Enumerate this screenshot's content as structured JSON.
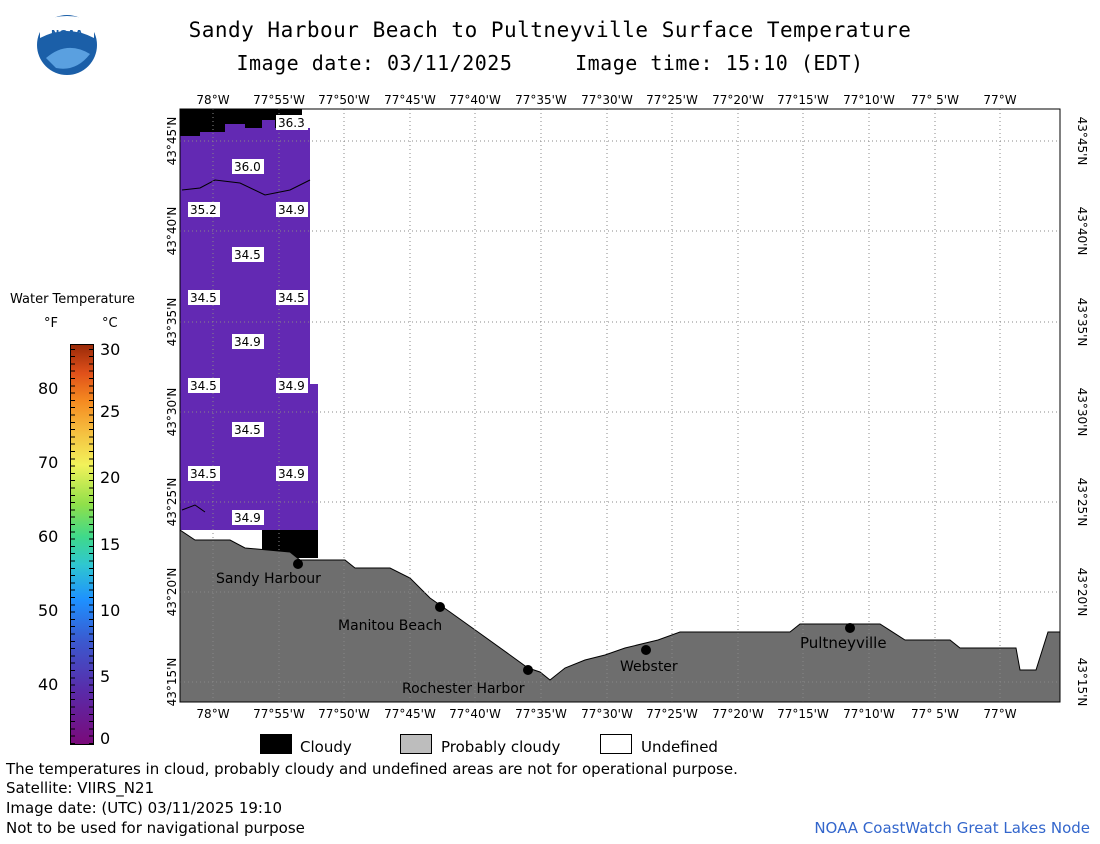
{
  "header": {
    "title": "Sandy Harbour Beach to Pultneyville Surface Temperature",
    "image_date": "Image date: 03/11/2025",
    "image_time": "Image time: 15:10 (EDT)"
  },
  "logo": {
    "text": "NOAA",
    "icon": "noaa-logo-icon"
  },
  "colorbar": {
    "title": "Water Temperature",
    "unit_f": "°F",
    "unit_c": "°C",
    "f_ticks": [
      "80",
      "70",
      "60",
      "50",
      "40"
    ],
    "c_ticks": [
      "30",
      "25",
      "20",
      "15",
      "10",
      "5",
      "0"
    ]
  },
  "map": {
    "lon_labels": [
      "78°W",
      "77°55'W",
      "77°50'W",
      "77°45'W",
      "77°40'W",
      "77°35'W",
      "77°30'W",
      "77°25'W",
      "77°20'W",
      "77°15'W",
      "77°10'W",
      "77° 5'W",
      "77°W"
    ],
    "lat_labels": [
      "43°45'N",
      "43°40'N",
      "43°35'N",
      "43°30'N",
      "43°25'N",
      "43°20'N",
      "43°15'N"
    ],
    "temps": [
      "36.3",
      "36.0",
      "35.2",
      "34.9",
      "34.5",
      "34.5",
      "34.5",
      "34.9",
      "34.5",
      "34.9",
      "34.5",
      "34.5",
      "34.9",
      "34.9"
    ],
    "places": [
      "Sandy Harbour",
      "Manitou Beach",
      "Rochester Harbor",
      "Webster",
      "Pultneyville"
    ],
    "colors": {
      "water": "#6329b3",
      "land": "#6e6e6e",
      "cloud": "#000000"
    }
  },
  "legend": {
    "cloudy": "Cloudy",
    "probably_cloudy": "Probably cloudy",
    "undefined": "Undefined"
  },
  "footer": {
    "note": "The temperatures in cloud, probably cloudy and undefined areas are not for operational purpose.",
    "satellite": "Satellite: VIIRS_N21",
    "utc_date": "Image date: (UTC) 03/11/2025  19:10",
    "nav": "Not to be used for navigational purpose",
    "credit": "NOAA CoastWatch Great Lakes Node"
  }
}
